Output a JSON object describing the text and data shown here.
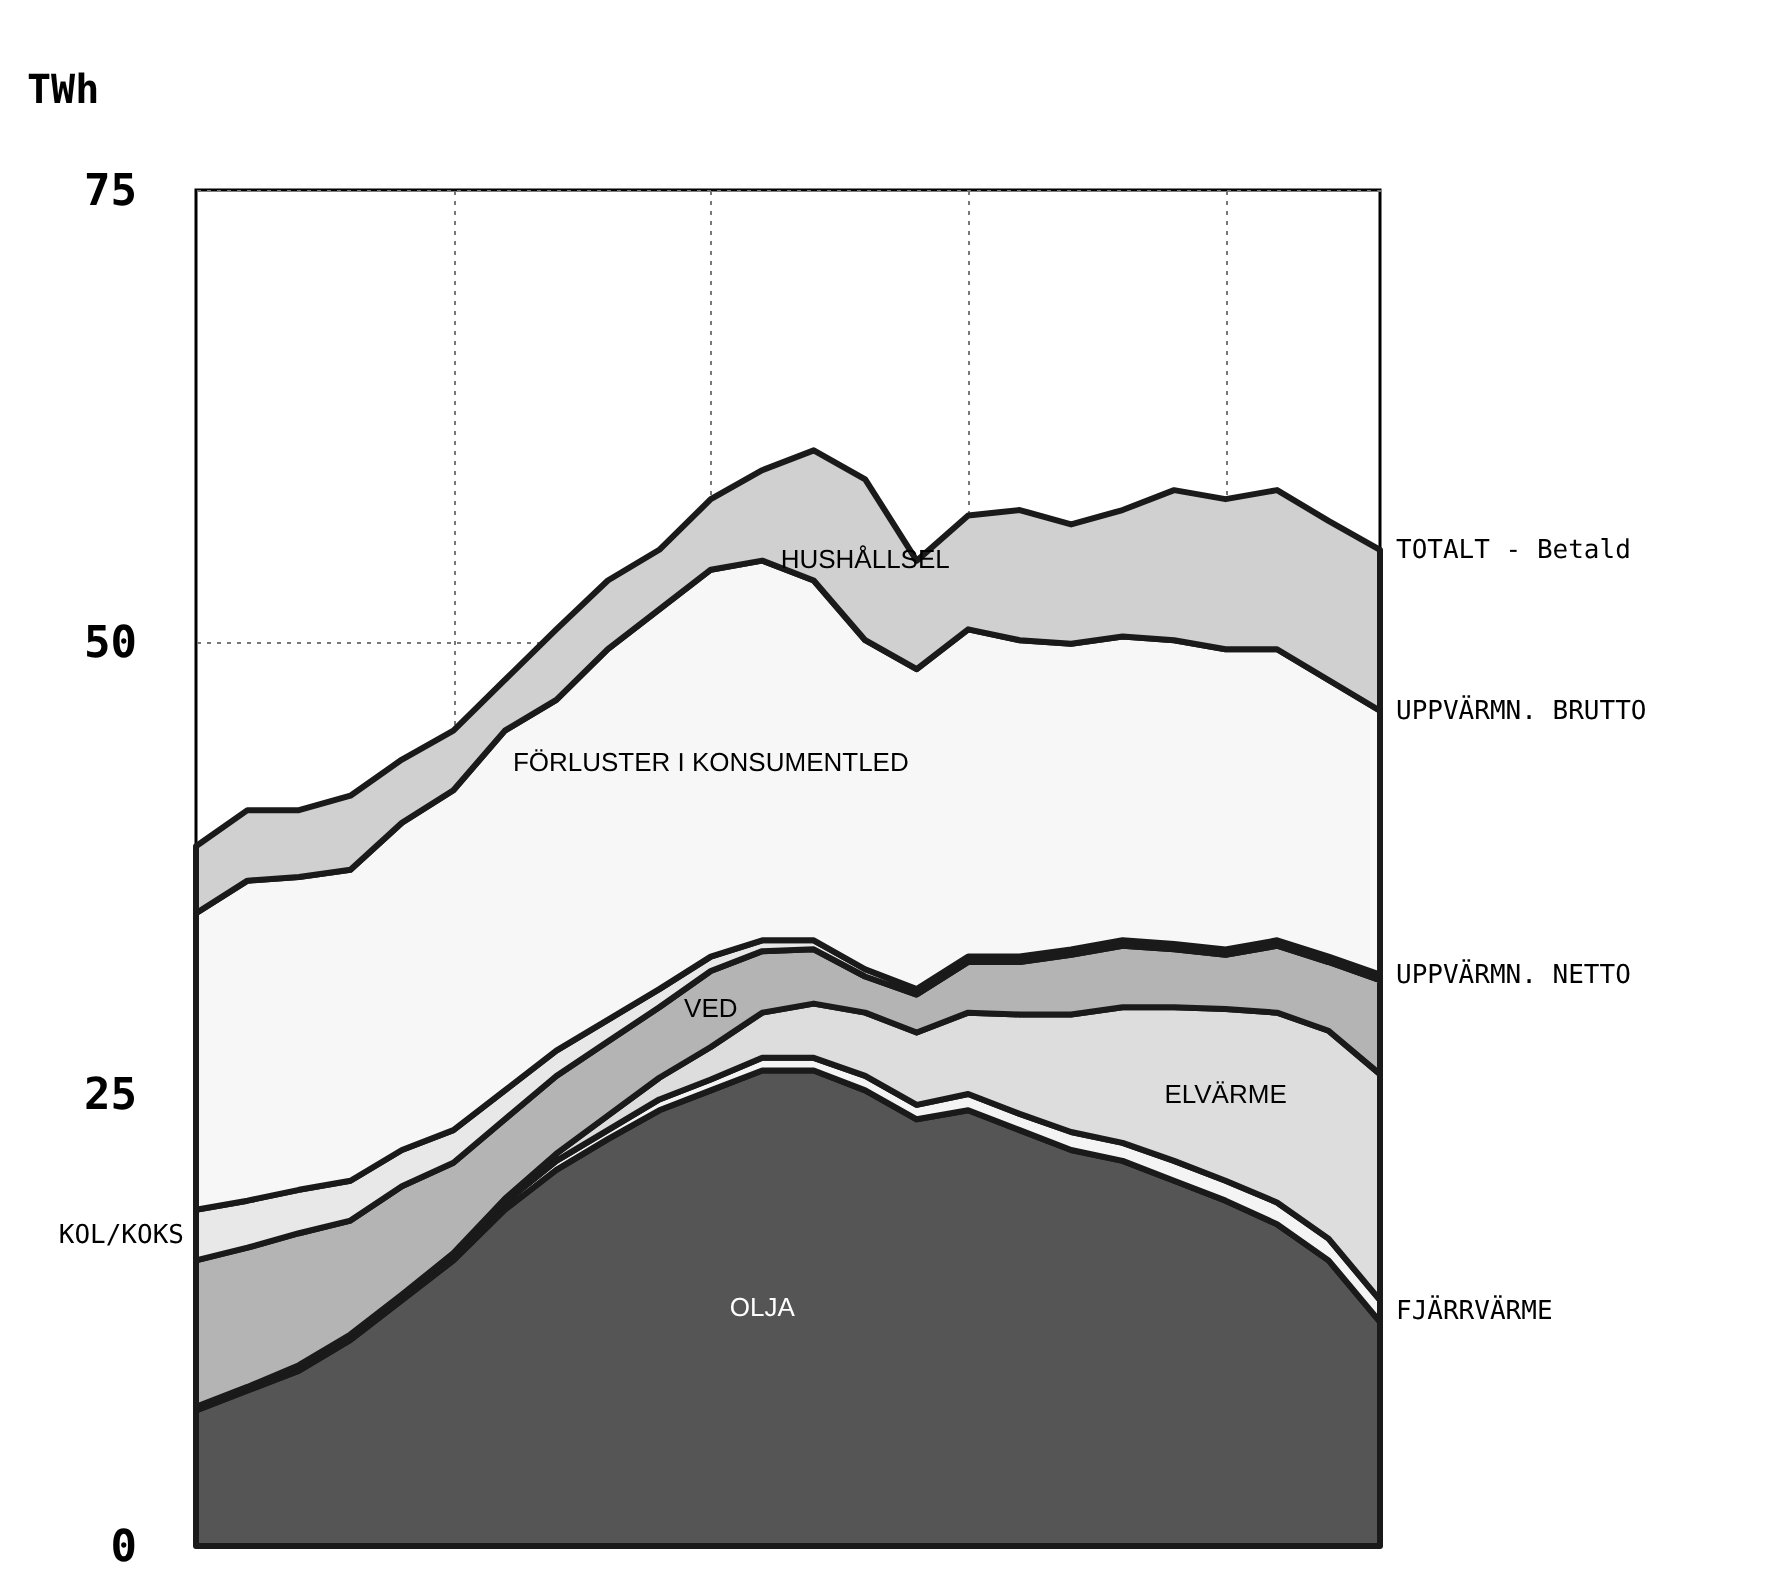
{
  "chart_data": {
    "type": "area",
    "stacked": true,
    "ylabel": "TWh",
    "ylim": [
      0,
      75
    ],
    "yticks": [
      0,
      25,
      50,
      75
    ],
    "grid": true,
    "legend": false,
    "categories": [
      null,
      null,
      null,
      null,
      null,
      null,
      null,
      null,
      null,
      null,
      null,
      null,
      null,
      null,
      null,
      null,
      null,
      null,
      null,
      null,
      null,
      null,
      null,
      null
    ],
    "series": [
      {
        "name": "OLJA",
        "color": "#555555",
        "values": [
          7.5,
          8.6,
          9.7,
          11.4,
          13.6,
          15.8,
          18.6,
          20.8,
          22.5,
          24.1,
          25.2,
          26.3,
          26.3,
          25.2,
          23.6,
          24.1,
          23,
          21.9,
          21.3,
          20.2,
          19.1,
          17.8,
          15.8,
          12.4
        ]
      },
      {
        "name": "FJÄRRVÄRME",
        "color": "#f4f4f4",
        "values": [
          0.2,
          0.2,
          0.3,
          0.3,
          0.3,
          0.4,
          0.4,
          0.5,
          0.5,
          0.6,
          0.6,
          0.7,
          0.7,
          0.8,
          0.8,
          0.9,
          0.9,
          1,
          1,
          1.1,
          1.1,
          1.2,
          1.2,
          1.2
        ]
      },
      {
        "name": "ELVÄRME",
        "color": "#dddddd",
        "values": [
          0,
          0,
          0,
          0,
          0,
          0,
          0.2,
          0.4,
          0.8,
          1.2,
          1.8,
          2.5,
          3,
          3.5,
          4,
          4.5,
          5.5,
          6.5,
          7.5,
          8.5,
          9.5,
          10.5,
          11.5,
          12.5
        ]
      },
      {
        "name": "VED",
        "color": "#b4b4b4",
        "values": [
          8.1,
          7.7,
          7.3,
          6.3,
          6,
          5,
          4.4,
          4.3,
          4.1,
          3.9,
          4.2,
          3.4,
          3,
          2,
          2.1,
          2.8,
          2.9,
          3.3,
          3.4,
          3.2,
          3,
          3.7,
          3.8,
          5.2
        ]
      },
      {
        "name": "KOL/KOKS",
        "color": "#e8e8e8",
        "values": [
          2.8,
          2.6,
          2.4,
          2.2,
          2,
          1.8,
          1.6,
          1.4,
          1.2,
          1,
          0.8,
          0.6,
          0.5,
          0.4,
          0.3,
          0.3,
          0.3,
          0.3,
          0.3,
          0.3,
          0.3,
          0.3,
          0.3,
          0.3
        ]
      },
      {
        "name": "FÖRLUSTER I KONSUMENTLED",
        "color": "#f7f7f7",
        "values": [
          16.4,
          17.7,
          17.3,
          17.2,
          18.1,
          18.8,
          19.9,
          19.4,
          20.5,
          21,
          21.4,
          21,
          19.9,
          18.2,
          17.7,
          18.1,
          17.5,
          16.9,
          16.8,
          16.8,
          16.6,
          16.1,
          15.3,
          14.6
        ]
      },
      {
        "name": "HUSHÅLLSEL",
        "color": "#d0d0d0",
        "values": [
          3.7,
          3.9,
          3.7,
          4.1,
          3.5,
          3.3,
          2.8,
          3.9,
          3.8,
          3.3,
          3.9,
          5,
          7.2,
          8.9,
          6,
          6.3,
          7.2,
          6.6,
          7,
          8.3,
          8.3,
          8.8,
          8.8,
          8.9
        ]
      }
    ],
    "annotations": [
      "TOTALT - Betald",
      "UPPVÄRMN. BRUTTO",
      "UPPVÄRMN. NETTO"
    ]
  }
}
